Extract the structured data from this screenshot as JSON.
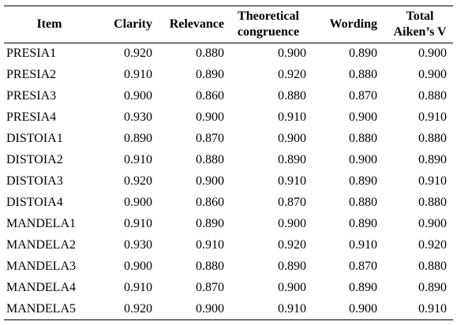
{
  "table": {
    "headers": {
      "item": "Item",
      "clarity": "Clarity",
      "relevance": "Relevance",
      "theoretical_line1": "Theoretical",
      "theoretical_line2": "congruence",
      "wording": "Wording",
      "total_line1": "Total",
      "total_line2": "Aiken’s V"
    },
    "rows": [
      {
        "item": "PRESIA1",
        "clarity": "0.920",
        "relevance": "0.880",
        "theoretical": "0.900",
        "wording": "0.890",
        "total": "0.900"
      },
      {
        "item": "PRESIA2",
        "clarity": "0.910",
        "relevance": "0.890",
        "theoretical": "0.920",
        "wording": "0.880",
        "total": "0.900"
      },
      {
        "item": "PRESIA3",
        "clarity": "0.900",
        "relevance": "0.860",
        "theoretical": "0.880",
        "wording": "0.870",
        "total": "0.880"
      },
      {
        "item": "PRESIA4",
        "clarity": "0.930",
        "relevance": "0.900",
        "theoretical": "0.910",
        "wording": "0.900",
        "total": "0.910"
      },
      {
        "item": "DISTOIA1",
        "clarity": "0.890",
        "relevance": "0.870",
        "theoretical": "0.900",
        "wording": "0.880",
        "total": "0.880"
      },
      {
        "item": "DISTOIA2",
        "clarity": "0.910",
        "relevance": "0.880",
        "theoretical": "0.890",
        "wording": "0.900",
        "total": "0.890"
      },
      {
        "item": "DISTOIA3",
        "clarity": "0.920",
        "relevance": "0.900",
        "theoretical": "0.910",
        "wording": "0.890",
        "total": "0.910"
      },
      {
        "item": "DISTOIA4",
        "clarity": "0.900",
        "relevance": "0.860",
        "theoretical": "0.870",
        "wording": "0.880",
        "total": "0.880"
      },
      {
        "item": "MANDELA1",
        "clarity": "0.910",
        "relevance": "0.890",
        "theoretical": "0.900",
        "wording": "0.890",
        "total": "0.900"
      },
      {
        "item": "MANDELA2",
        "clarity": "0.930",
        "relevance": "0.910",
        "theoretical": "0.920",
        "wording": "0.910",
        "total": "0.920"
      },
      {
        "item": "MANDELA3",
        "clarity": "0.900",
        "relevance": "0.880",
        "theoretical": "0.890",
        "wording": "0.870",
        "total": "0.880"
      },
      {
        "item": "MANDELA4",
        "clarity": "0.910",
        "relevance": "0.870",
        "theoretical": "0.900",
        "wording": "0.890",
        "total": "0.890"
      },
      {
        "item": "MANDELA5",
        "clarity": "0.920",
        "relevance": "0.900",
        "theoretical": "0.910",
        "wording": "0.900",
        "total": "0.910"
      }
    ]
  }
}
